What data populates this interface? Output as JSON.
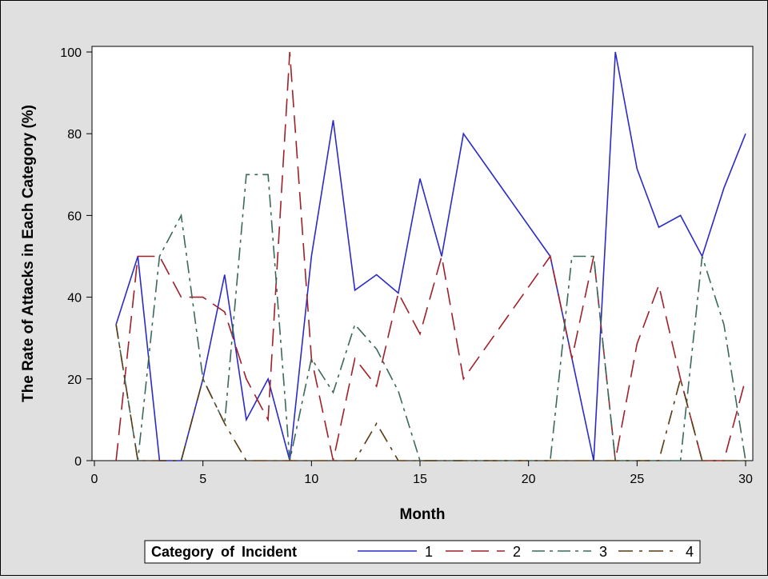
{
  "chart_data": {
    "type": "line",
    "title": "",
    "xlabel": "Month",
    "ylabel": "The Rate of Attacks in Each Category (%)",
    "xlim": [
      0,
      30
    ],
    "ylim": [
      0,
      100
    ],
    "xticks": [
      0,
      5,
      10,
      15,
      20,
      25,
      30
    ],
    "yticks": [
      0,
      20,
      40,
      60,
      80,
      100
    ],
    "grid": false,
    "legend": {
      "title": "Category of Incident",
      "placement": "bottom"
    },
    "series": [
      {
        "name": "1",
        "color": "#2b2bc8",
        "dash": "solid",
        "points": [
          [
            1,
            33.3
          ],
          [
            2,
            50
          ],
          [
            3,
            0
          ],
          [
            4,
            0
          ],
          [
            5,
            20
          ],
          [
            6,
            45.5
          ],
          [
            7,
            10
          ],
          [
            8,
            20
          ],
          [
            9,
            0
          ],
          [
            10,
            50
          ],
          [
            11,
            83.3
          ],
          [
            12,
            41.7
          ],
          [
            13,
            45.5
          ],
          [
            14,
            41
          ],
          [
            15,
            69
          ],
          [
            16,
            50
          ],
          [
            17,
            80
          ],
          [
            21,
            50
          ],
          [
            23,
            0
          ],
          [
            24,
            100
          ],
          [
            25,
            71.4
          ],
          [
            26,
            57.1
          ],
          [
            27,
            60
          ],
          [
            28,
            50
          ],
          [
            29,
            66.7
          ],
          [
            30,
            80
          ]
        ]
      },
      {
        "name": "2",
        "color": "#a0202a",
        "dash": "long",
        "points": [
          [
            1,
            0
          ],
          [
            2,
            50
          ],
          [
            3,
            50
          ],
          [
            4,
            40
          ],
          [
            5,
            40
          ],
          [
            6,
            36.4
          ],
          [
            7,
            20
          ],
          [
            8,
            10
          ],
          [
            9,
            100
          ],
          [
            10,
            25
          ],
          [
            11,
            0
          ],
          [
            12,
            25
          ],
          [
            13,
            18.2
          ],
          [
            14,
            41
          ],
          [
            15,
            31
          ],
          [
            16,
            50
          ],
          [
            17,
            20
          ],
          [
            21,
            50
          ],
          [
            22,
            25
          ],
          [
            23,
            50
          ],
          [
            24,
            0
          ],
          [
            25,
            28.6
          ],
          [
            26,
            42.9
          ],
          [
            27,
            20
          ],
          [
            28,
            0
          ],
          [
            29,
            0
          ],
          [
            30,
            20
          ]
        ]
      },
      {
        "name": "3",
        "color": "#3a6a5a",
        "dash": "dashdot",
        "points": [
          [
            1,
            33.3
          ],
          [
            2,
            0
          ],
          [
            3,
            50
          ],
          [
            4,
            60
          ],
          [
            5,
            20
          ],
          [
            6,
            9.1
          ],
          [
            7,
            70
          ],
          [
            8,
            70
          ],
          [
            9,
            0
          ],
          [
            10,
            25
          ],
          [
            11,
            16.7
          ],
          [
            12,
            33.3
          ],
          [
            13,
            27.3
          ],
          [
            14,
            17
          ],
          [
            15,
            0
          ],
          [
            21,
            0
          ],
          [
            22,
            50
          ],
          [
            23,
            50
          ],
          [
            24,
            0
          ],
          [
            26,
            0
          ],
          [
            27,
            0
          ],
          [
            28,
            50
          ],
          [
            29,
            33.3
          ],
          [
            30,
            0
          ]
        ]
      },
      {
        "name": "4",
        "color": "#5a3a10",
        "dash": "longdash",
        "points": [
          [
            1,
            33.3
          ],
          [
            2,
            0
          ],
          [
            3,
            0
          ],
          [
            4,
            0
          ],
          [
            5,
            20
          ],
          [
            6,
            9.1
          ],
          [
            7,
            0
          ],
          [
            9,
            0
          ],
          [
            11,
            0
          ],
          [
            12,
            0
          ],
          [
            13,
            9.1
          ],
          [
            14,
            0
          ],
          [
            21,
            0
          ],
          [
            24,
            0
          ],
          [
            26,
            0
          ],
          [
            27,
            20
          ],
          [
            28,
            0
          ],
          [
            30,
            0
          ]
        ]
      }
    ]
  }
}
